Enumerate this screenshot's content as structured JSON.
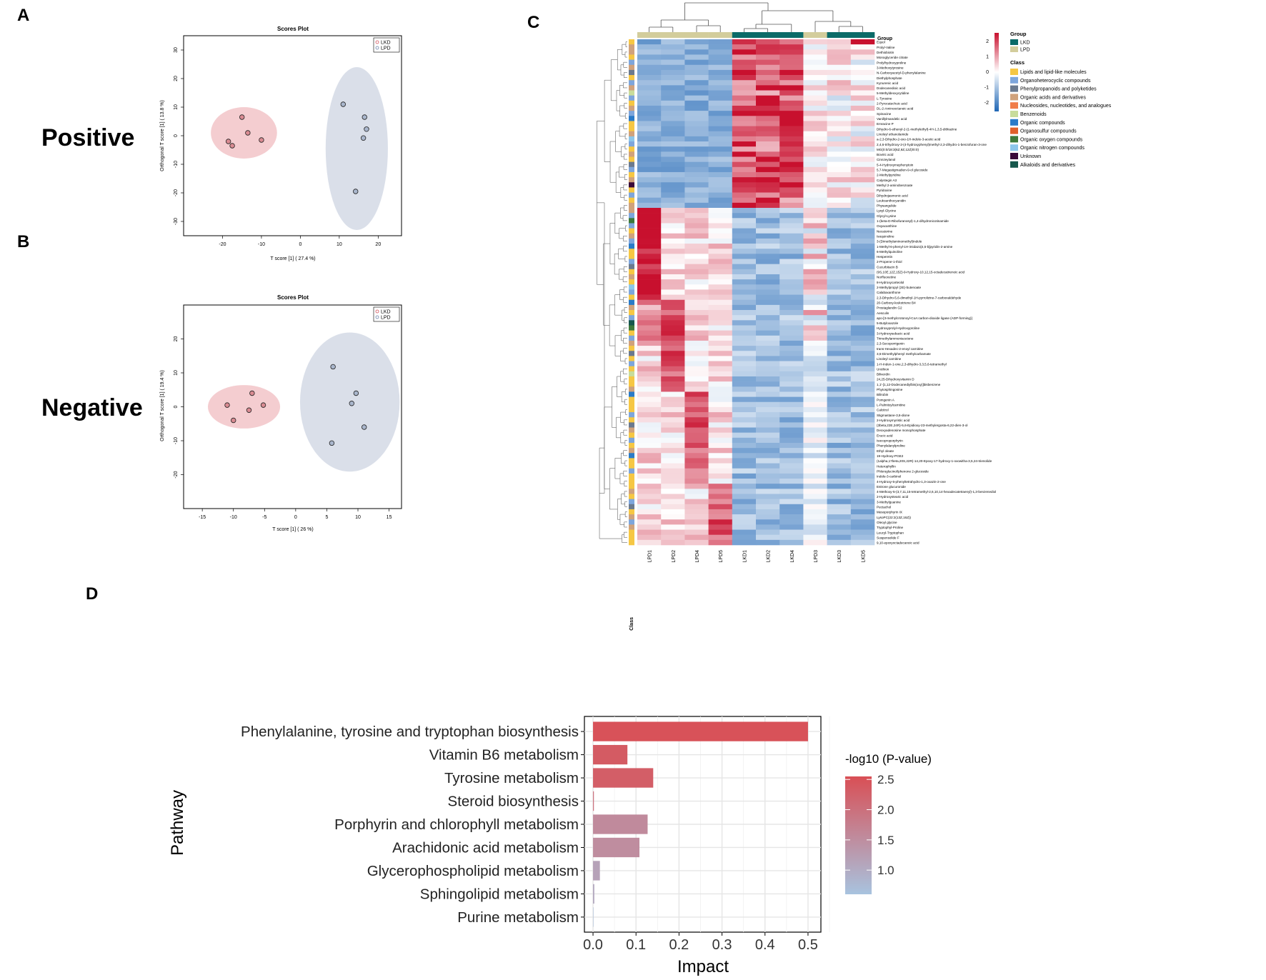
{
  "panel_letters": {
    "a": "A",
    "b": "B",
    "c": "C",
    "d": "D"
  },
  "mode_labels": {
    "positive": "Positive",
    "negative": "Negative"
  },
  "colors": {
    "lkd_ellipse": "#f2c4c8",
    "lpd_ellipse": "#d3d9e5",
    "lkd_point": "#d98b92",
    "lpd_point": "#a9b6cc",
    "bar_high": "#d94f55",
    "bar_low": "#a8c3df",
    "heat_red": "#c8102e",
    "heat_blue": "#1f66b5",
    "group_lkd": "#0b6b68",
    "group_lpd": "#d3cd9c"
  },
  "chart_data": [
    {
      "id": "scores_positive",
      "type": "scatter",
      "title": "Scores Plot",
      "xlabel": "T score [1] ( 27.4 %)",
      "ylabel": "Orthogonal T score [1] ( 13.8 %)",
      "xlim": [
        -30,
        26
      ],
      "ylim": [
        -35,
        35
      ],
      "xticks": [
        -20,
        -10,
        0,
        10,
        20
      ],
      "yticks": [
        -30,
        -20,
        -10,
        0,
        10,
        20,
        30
      ],
      "legend": [
        "LKD",
        "LPD"
      ],
      "series": [
        {
          "name": "LKD",
          "points": [
            [
              -15,
              6.5
            ],
            [
              -13.5,
              1
            ],
            [
              -18.5,
              -2
            ],
            [
              -17.5,
              -3.5
            ],
            [
              -10,
              -1.5
            ]
          ],
          "ellipse": {
            "cx": -14.5,
            "cy": 1,
            "rx": 8.5,
            "ry": 9
          }
        },
        {
          "name": "LPD",
          "points": [
            [
              11,
              11
            ],
            [
              16.5,
              6.5
            ],
            [
              17,
              2.3
            ],
            [
              16.2,
              -0.8
            ],
            [
              14.2,
              -19.5
            ]
          ],
          "ellipse": {
            "cx": 14.5,
            "cy": -4.5,
            "rx": 8,
            "ry": 28.5
          }
        }
      ]
    },
    {
      "id": "scores_negative",
      "type": "scatter",
      "title": "Scores Plot",
      "xlabel": "T score [1] ( 26 %)",
      "ylabel": "Orthogonal T score [1] ( 19.4 %)",
      "xlim": [
        -18,
        17
      ],
      "ylim": [
        -30,
        30
      ],
      "xticks": [
        -15,
        -10,
        -5,
        0,
        5,
        10,
        15
      ],
      "yticks": [
        -20,
        -10,
        0,
        10,
        20
      ],
      "legend": [
        "LKD",
        "LPD"
      ],
      "series": [
        {
          "name": "LKD",
          "points": [
            [
              -7,
              4
            ],
            [
              -11,
              0.5
            ],
            [
              -7.5,
              -1
            ],
            [
              -5.2,
              0.5
            ],
            [
              -10,
              -4
            ]
          ],
          "ellipse": {
            "cx": -8.3,
            "cy": 0,
            "rx": 5.8,
            "ry": 6.4
          }
        },
        {
          "name": "LPD",
          "points": [
            [
              6,
              11.8
            ],
            [
              9.7,
              4
            ],
            [
              9,
              1
            ],
            [
              11,
              -6
            ],
            [
              5.8,
              -10.7
            ]
          ],
          "ellipse": {
            "cx": 8.7,
            "cy": 1.4,
            "rx": 8,
            "ry": 20.5
          }
        }
      ]
    },
    {
      "id": "heatmap",
      "type": "heatmap",
      "columns": [
        "LPD1",
        "LPD2",
        "LPD4",
        "LPD5",
        "LKD1",
        "LKD2",
        "LKD4",
        "LPD3",
        "LKD3",
        "LKD5"
      ],
      "column_groups": [
        "LPD",
        "LPD",
        "LPD",
        "LPD",
        "LKD",
        "LKD",
        "LKD",
        "LPD",
        "LKD",
        "LKD"
      ],
      "class_axis_label": "Class",
      "rows": [
        "Equol",
        "Prolyl-Valine",
        "Dethiobiotin",
        "Monoglyceride citrate",
        "Prolylhydroxyproline",
        "3-Methoxytyrosine",
        "N-Carboxyacetyl-D-phenylalanine",
        "Diethylphosphate",
        "Kynurenic acid",
        "Dodecanedioic acid",
        "5-Methyldeoxycytidine",
        "L-Tyrosine",
        "2-Pyrocatechuic acid",
        "DL-2-Aminooctanoic acid",
        "Spinacine",
        "Vanillylmandelic acid",
        "Emracine P",
        "Dihydro-6-ethenyl-2-(1-methylethyl)-4H-1,3,5-dithiazine",
        "Linoleyl ethanolamide",
        "a-2,3-Dihydro-2-oxo-1H-indole-3-acetic acid",
        "2,4,6-trihydroxy-2-(4-hydroxyphenyl)methyl-2,3-dihydro-1-benzofuran-3-one",
        "MG(0:0/18:3(6Z,9Z,12Z)/0:0)",
        "Boviric acid",
        "Cinnzeylanol",
        "5-4-Hydroxymephenytoin",
        "5,7-Megastigmadien-9-ol glucoside",
        "2-Methylpyridine",
        "Calystegin A3",
        "Methyl 2-aminobenzoate",
        "Pyridoxine",
        "Dihydrojasmonic acid",
        "Leukoanthocyanidin",
        "Physangulide",
        "Lysyl-Glycine",
        "Glycyl-Lysine",
        "1-(beta-D-Ribofuranosyl)-1,4-dihydronicotinamide",
        "Oxyacanthine",
        "Necatorine",
        "Isoquinoline",
        "3-(Dimethylaminomethyl)indole",
        "1-Methyl-6-phenyl-1H-imidazo[4,5-b]pyridin-2-amine",
        "6-Methylquinoline",
        "Hesperetin",
        "2-Propene-1-thiol",
        "Cucurbitacin B",
        "(9S,10E,12Z,15Z)-9-Hydroxy-10,12,15-octadecatrienoic acid",
        "Norfluoxetine",
        "8-Hydroxycarteolol",
        "2-Methylpropyl (2E)-butenoate",
        "Calabaxanthone",
        "2,3-Dihydro-5,6-dimethyl-1H-pyrrolizine-7-carboxaldehyde",
        "20-Carboxy-leukotriene B4",
        "Prostaglandin G2",
        "Aesculin",
        "apo-[3-methylcrotonoyl-CoA:carbon-dioxide ligase (ADP-forming)]",
        "5-Butyloxazole",
        "Hydroxyprolyl-Hydroxyproline",
        "3-Hydroxysebacic acid",
        "Trimethylammoniacetone",
        "2,3-Secoporrigenin",
        "trans-Hexadec-2-enoyl carnitine",
        "3,5-Dimethylphenyl methylcarbamate",
        "Linoleyl carnitine",
        "1-H-Inden-1-one,2,3-dihydro-3,3,5,6-tetramethyl",
        "Urothion",
        "Biliverdin",
        "24,25-Dihydroxyvitamin D",
        "1,1'-[1,12-Dodecanediylbis(oxy)]bisbenzene",
        "Phytosphingosine",
        "Bilirubin",
        "Pomgenin A",
        "L-Palmitoylcarnitine",
        "Calcitrol",
        "Stigmastane-3,6-dione",
        "2-Hydroxymyristic acid",
        "(3beta,22E,24R)-5,6-Epidioxy-23-methylergosta-6,22-dien-3-ol",
        "Deoxyadenosine monophosphate",
        "Erucic acid",
        "Isocoproporphyrin",
        "Phenylalanylproline",
        "Ethyl oleate",
        "19-Hydroxy-PGE2",
        "(1alpha,17beta,20S,22R)-14,20-Epoxy-17-hydroxy-1-oxowitha-3,5,24-trienolide",
        "Heterophyllin",
        "Phloroglucinol/phenone 2-glucoside",
        "Indole-3-carbinol",
        "4-Hydroxy-5-phenyltetrahydro-1,3-oxazin-2-one",
        "Estrone glucuronide",
        "4-Methoxy-5-(3,7,11,15-tetramethyl-2,6,10,14-hexadecatetraenyl)-1,3-benzenediol",
        "2-Hydroxystearic acid",
        "3-Methylguanine",
        "Pectachol",
        "Mesoporphyrin IX",
        "LysoPC(22:2(13Z,16Z))",
        "Oleoyl glycine",
        "Tryptophyl-Proline",
        "Leucyl-Tryptophan",
        "Suspensolide F",
        "9,10-epoxyoctadecanoic acid"
      ],
      "legend": {
        "group_title": "Group",
        "groups": [
          {
            "name": "LKD",
            "color": "#0b6b68"
          },
          {
            "name": "LPD",
            "color": "#d3cd9c"
          }
        ],
        "scale_ticks": [
          "2",
          "1",
          "0",
          "-1",
          "-2"
        ],
        "class_title": "Class",
        "classes": [
          {
            "name": "Lipids and lipid-like molecules",
            "color": "#f6c744"
          },
          {
            "name": "Organoheterocyclic compounds",
            "color": "#7ea6dc"
          },
          {
            "name": "Phenylpropanoids and polyketides",
            "color": "#6b7a8f"
          },
          {
            "name": "Organic acids and derivatives",
            "color": "#d0a27c"
          },
          {
            "name": "Nucleosides, nucleotides, and analogues",
            "color": "#f07d4a"
          },
          {
            "name": "Benzenoids",
            "color": "#c8dc9b"
          },
          {
            "name": "Organic compounds",
            "color": "#2a7bc8"
          },
          {
            "name": "Organosulfur compounds",
            "color": "#e0602a"
          },
          {
            "name": "Organic oxygen compounds",
            "color": "#3e7a3a"
          },
          {
            "name": "Organic nitrogen compounds",
            "color": "#8cc6ea"
          },
          {
            "name": "Unknown",
            "color": "#3a0a3a"
          },
          {
            "name": "Alkaloids and derivatives",
            "color": "#16574c"
          }
        ]
      }
    },
    {
      "id": "pathway_impact",
      "type": "bar",
      "orientation": "horizontal",
      "ylabel": "Pathway",
      "xlabel": "Impact",
      "xlim": [
        -0.02,
        0.53
      ],
      "xticks": [
        "0.0",
        "0.1",
        "0.2",
        "0.3",
        "0.4",
        "0.5"
      ],
      "categories": [
        "Phenylalanine, tyrosine and tryptophan biosynthesis",
        "Vitamin B6 metabolism",
        "Tyrosine metabolism",
        "Steroid biosynthesis",
        "Porphyrin and chlorophyll metabolism",
        "Arachidonic acid metabolism",
        "Glycerophospholipid metabolism",
        "Sphingolipid metabolism",
        "Purine metabolism"
      ],
      "values": [
        0.5,
        0.08,
        0.14,
        0.002,
        0.127,
        0.108,
        0.016,
        0.003,
        0.0
      ],
      "color_values": [
        2.5,
        2.35,
        2.3,
        2.0,
        1.55,
        1.5,
        1.15,
        1.05,
        0.7
      ],
      "legend_title": "-log10 (P-value)",
      "color_ticks": [
        "2.5",
        "2.0",
        "1.5",
        "1.0"
      ],
      "color_range": [
        0.6,
        2.55
      ]
    }
  ]
}
